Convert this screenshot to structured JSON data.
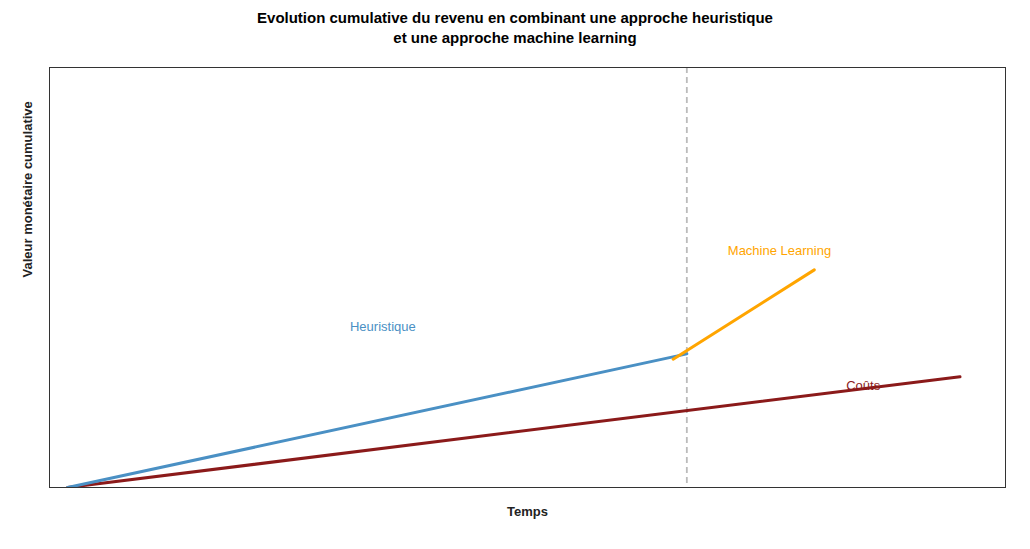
{
  "chart_data": {
    "type": "line",
    "title": "Evolution cumulative du revenu en combinant une approche heuristique\net une approche machine learning",
    "x_label": "Temps",
    "y_label": "Valeur monétaire cumulative",
    "xlim": [
      0.0,
      1.05
    ],
    "ylim": [
      0.0,
      0.55
    ],
    "tick_labels": false,
    "series": [
      {
        "color": "#8B1A1A",
        "x": [
          0.02,
          1.0
        ],
        "values": [
          0.0,
          0.145
        ]
      },
      {
        "color": "#4A90C4",
        "x": [
          0.02,
          0.7
        ],
        "values": [
          0.0,
          0.175
        ]
      },
      {
        "color": "#FFA500",
        "x": [
          0.685,
          0.84
        ],
        "values": [
          0.168,
          0.285
        ]
      }
    ],
    "vlines": [
      {
        "x": 0.7,
        "color": "#BBBBBB",
        "line_style": "dashed"
      }
    ],
    "annotations": [
      {
        "text": "Heuristique",
        "x": 0.33,
        "y": 0.205,
        "color": "#4A90C4"
      },
      {
        "text": "Coûts",
        "x": 0.875,
        "y": 0.128,
        "color": "#8B1A1A"
      },
      {
        "text": "Machine Learning",
        "x": 0.745,
        "y": 0.305,
        "color": "#FFA500"
      }
    ]
  }
}
